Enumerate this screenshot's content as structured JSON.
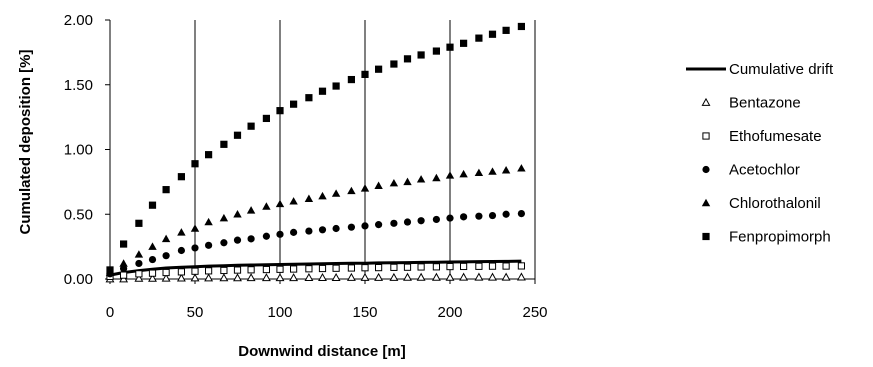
{
  "chart_data": {
    "type": "scatter",
    "title": "",
    "xlabel": "Downwind distance [m]",
    "ylabel": "Cumulated deposition [%]",
    "xlim": [
      0,
      250
    ],
    "ylim": [
      0,
      2
    ],
    "xticks": [
      "0",
      "50",
      "100",
      "150",
      "200",
      "250"
    ],
    "yticks": [
      "0.00",
      "0.50",
      "1.00",
      "1.50",
      "2.00"
    ],
    "grid": "vertical",
    "legend_position": "right",
    "x": [
      0,
      8,
      17,
      25,
      33,
      42,
      50,
      58,
      67,
      75,
      83,
      92,
      100,
      108,
      117,
      125,
      133,
      142,
      150,
      158,
      167,
      175,
      183,
      192,
      200,
      208,
      217,
      225,
      233,
      242
    ],
    "series": [
      {
        "name": "Cumulative drift",
        "marker": "line",
        "values": [
          0.03,
          0.05,
          0.065,
          0.075,
          0.085,
          0.09,
          0.095,
          0.1,
          0.103,
          0.106,
          0.108,
          0.11,
          0.112,
          0.114,
          0.116,
          0.118,
          0.12,
          0.121,
          0.122,
          0.124,
          0.125,
          0.127,
          0.128,
          0.13,
          0.131,
          0.132,
          0.134,
          0.135,
          0.136,
          0.138
        ]
      },
      {
        "name": "Bentazone",
        "marker": "triangle-open",
        "values": [
          0.0,
          0.0,
          0.005,
          0.005,
          0.006,
          0.007,
          0.008,
          0.008,
          0.009,
          0.009,
          0.01,
          0.01,
          0.01,
          0.01,
          0.011,
          0.011,
          0.011,
          0.012,
          0.012,
          0.012,
          0.012,
          0.013,
          0.013,
          0.013,
          0.013,
          0.014,
          0.014,
          0.014,
          0.014,
          0.015
        ]
      },
      {
        "name": "Ethofumesate",
        "marker": "square-open",
        "values": [
          0.02,
          0.03,
          0.04,
          0.045,
          0.05,
          0.055,
          0.06,
          0.063,
          0.066,
          0.069,
          0.071,
          0.073,
          0.075,
          0.077,
          0.079,
          0.081,
          0.083,
          0.085,
          0.087,
          0.088,
          0.09,
          0.091,
          0.093,
          0.094,
          0.096,
          0.097,
          0.098,
          0.099,
          0.1,
          0.101
        ]
      },
      {
        "name": "Acetochlor",
        "marker": "circle-filled",
        "values": [
          0.04,
          0.08,
          0.12,
          0.15,
          0.18,
          0.22,
          0.24,
          0.26,
          0.28,
          0.3,
          0.31,
          0.33,
          0.345,
          0.36,
          0.37,
          0.38,
          0.39,
          0.4,
          0.41,
          0.42,
          0.43,
          0.44,
          0.45,
          0.46,
          0.47,
          0.48,
          0.485,
          0.49,
          0.5,
          0.505
        ]
      },
      {
        "name": "Chlorothalonil",
        "marker": "triangle-filled",
        "values": [
          0.05,
          0.12,
          0.19,
          0.25,
          0.31,
          0.36,
          0.39,
          0.44,
          0.47,
          0.5,
          0.53,
          0.56,
          0.58,
          0.6,
          0.62,
          0.64,
          0.66,
          0.68,
          0.7,
          0.72,
          0.74,
          0.75,
          0.77,
          0.78,
          0.8,
          0.81,
          0.82,
          0.83,
          0.84,
          0.855
        ]
      },
      {
        "name": "Fenpropimorph",
        "marker": "square-filled",
        "values": [
          0.07,
          0.27,
          0.43,
          0.57,
          0.69,
          0.79,
          0.89,
          0.96,
          1.04,
          1.11,
          1.18,
          1.24,
          1.3,
          1.35,
          1.4,
          1.45,
          1.49,
          1.54,
          1.58,
          1.62,
          1.66,
          1.7,
          1.73,
          1.76,
          1.79,
          1.82,
          1.86,
          1.89,
          1.92,
          1.95
        ]
      }
    ]
  }
}
